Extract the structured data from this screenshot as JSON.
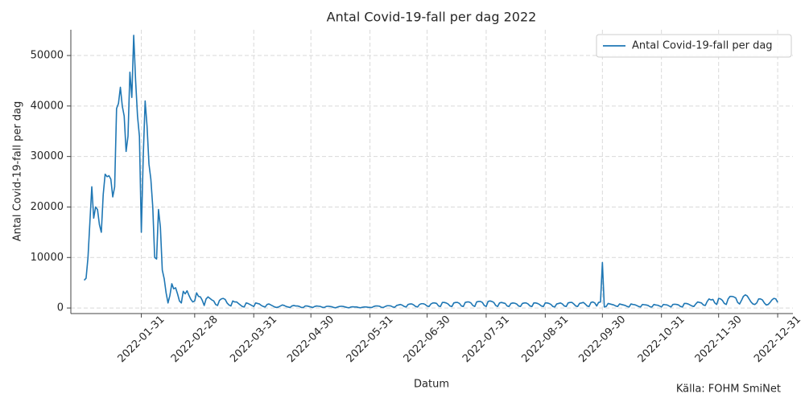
{
  "chart_data": {
    "type": "line",
    "title": "Antal Covid-19-fall per dag 2022",
    "xlabel": "Datum",
    "ylabel": "Antal Covid-19-fall per dag",
    "annotation": "Källa: FOHM SmiNet",
    "legend": "upper right",
    "grid": true,
    "xlim": [
      "2021-12-25",
      "2023-01-08"
    ],
    "ylim": [
      -1100,
      55100
    ],
    "xticks": [
      "2022-01-31",
      "2022-02-28",
      "2022-03-31",
      "2022-04-30",
      "2022-05-31",
      "2022-06-30",
      "2022-07-31",
      "2022-08-31",
      "2022-09-30",
      "2022-10-31",
      "2022-11-30",
      "2022-12-31"
    ],
    "yticks": [
      0,
      10000,
      20000,
      30000,
      40000,
      50000
    ],
    "x": [
      "2022-01-01",
      "2022-01-02",
      "2022-01-03",
      "2022-01-04",
      "2022-01-05",
      "2022-01-06",
      "2022-01-07",
      "2022-01-08",
      "2022-01-09",
      "2022-01-10",
      "2022-01-11",
      "2022-01-12",
      "2022-01-13",
      "2022-01-14",
      "2022-01-15",
      "2022-01-16",
      "2022-01-17",
      "2022-01-18",
      "2022-01-19",
      "2022-01-20",
      "2022-01-21",
      "2022-01-22",
      "2022-01-23",
      "2022-01-24",
      "2022-01-25",
      "2022-01-26",
      "2022-01-27",
      "2022-01-28",
      "2022-01-29",
      "2022-01-30",
      "2022-01-31",
      "2022-02-01",
      "2022-02-02",
      "2022-02-03",
      "2022-02-04",
      "2022-02-05",
      "2022-02-06",
      "2022-02-07",
      "2022-02-08",
      "2022-02-09",
      "2022-02-10",
      "2022-02-11",
      "2022-02-12",
      "2022-02-13",
      "2022-02-14",
      "2022-02-15",
      "2022-02-16",
      "2022-02-17",
      "2022-02-18",
      "2022-02-19",
      "2022-02-20",
      "2022-02-21",
      "2022-02-22",
      "2022-02-23",
      "2022-02-24",
      "2022-02-25",
      "2022-02-26",
      "2022-02-27",
      "2022-02-28",
      "2022-03-01",
      "2022-03-02",
      "2022-03-03",
      "2022-03-04",
      "2022-03-05",
      "2022-03-06",
      "2022-03-07",
      "2022-03-08",
      "2022-03-09",
      "2022-03-10",
      "2022-03-11",
      "2022-03-12",
      "2022-03-13",
      "2022-03-14",
      "2022-03-15",
      "2022-03-16",
      "2022-03-17",
      "2022-03-18",
      "2022-03-19",
      "2022-03-20",
      "2022-03-21",
      "2022-03-22",
      "2022-03-23",
      "2022-03-24",
      "2022-03-25",
      "2022-03-26",
      "2022-03-27",
      "2022-03-28",
      "2022-03-29",
      "2022-03-30",
      "2022-03-31",
      "2022-04-01",
      "2022-04-02",
      "2022-04-03",
      "2022-04-04",
      "2022-04-05",
      "2022-04-06",
      "2022-04-07",
      "2022-04-08",
      "2022-04-09",
      "2022-04-10",
      "2022-04-11",
      "2022-04-12",
      "2022-04-13",
      "2022-04-14",
      "2022-04-15",
      "2022-04-16",
      "2022-04-17",
      "2022-04-18",
      "2022-04-19",
      "2022-04-20",
      "2022-04-21",
      "2022-04-22",
      "2022-04-23",
      "2022-04-24",
      "2022-04-25",
      "2022-04-26",
      "2022-04-27",
      "2022-04-28",
      "2022-04-29",
      "2022-04-30",
      "2022-05-01",
      "2022-05-02",
      "2022-05-03",
      "2022-05-04",
      "2022-05-05",
      "2022-05-06",
      "2022-05-07",
      "2022-05-08",
      "2022-05-09",
      "2022-05-10",
      "2022-05-11",
      "2022-05-12",
      "2022-05-13",
      "2022-05-14",
      "2022-05-15",
      "2022-05-16",
      "2022-05-17",
      "2022-05-18",
      "2022-05-19",
      "2022-05-20",
      "2022-05-21",
      "2022-05-22",
      "2022-05-23",
      "2022-05-24",
      "2022-05-25",
      "2022-05-26",
      "2022-05-27",
      "2022-05-28",
      "2022-05-29",
      "2022-05-30",
      "2022-05-31",
      "2022-06-01",
      "2022-06-02",
      "2022-06-03",
      "2022-06-04",
      "2022-06-05",
      "2022-06-06",
      "2022-06-07",
      "2022-06-08",
      "2022-06-09",
      "2022-06-10",
      "2022-06-11",
      "2022-06-12",
      "2022-06-13",
      "2022-06-14",
      "2022-06-15",
      "2022-06-16",
      "2022-06-17",
      "2022-06-18",
      "2022-06-19",
      "2022-06-20",
      "2022-06-21",
      "2022-06-22",
      "2022-06-23",
      "2022-06-24",
      "2022-06-25",
      "2022-06-26",
      "2022-06-27",
      "2022-06-28",
      "2022-06-29",
      "2022-06-30",
      "2022-07-01",
      "2022-07-02",
      "2022-07-03",
      "2022-07-04",
      "2022-07-05",
      "2022-07-06",
      "2022-07-07",
      "2022-07-08",
      "2022-07-09",
      "2022-07-10",
      "2022-07-11",
      "2022-07-12",
      "2022-07-13",
      "2022-07-14",
      "2022-07-15",
      "2022-07-16",
      "2022-07-17",
      "2022-07-18",
      "2022-07-19",
      "2022-07-20",
      "2022-07-21",
      "2022-07-22",
      "2022-07-23",
      "2022-07-24",
      "2022-07-25",
      "2022-07-26",
      "2022-07-27",
      "2022-07-28",
      "2022-07-29",
      "2022-07-30",
      "2022-07-31",
      "2022-08-01",
      "2022-08-02",
      "2022-08-03",
      "2022-08-04",
      "2022-08-05",
      "2022-08-06",
      "2022-08-07",
      "2022-08-08",
      "2022-08-09",
      "2022-08-10",
      "2022-08-11",
      "2022-08-12",
      "2022-08-13",
      "2022-08-14",
      "2022-08-15",
      "2022-08-16",
      "2022-08-17",
      "2022-08-18",
      "2022-08-19",
      "2022-08-20",
      "2022-08-21",
      "2022-08-22",
      "2022-08-23",
      "2022-08-24",
      "2022-08-25",
      "2022-08-26",
      "2022-08-27",
      "2022-08-28",
      "2022-08-29",
      "2022-08-30",
      "2022-08-31",
      "2022-09-01",
      "2022-09-02",
      "2022-09-03",
      "2022-09-04",
      "2022-09-05",
      "2022-09-06",
      "2022-09-07",
      "2022-09-08",
      "2022-09-09",
      "2022-09-10",
      "2022-09-11",
      "2022-09-12",
      "2022-09-13",
      "2022-09-14",
      "2022-09-15",
      "2022-09-16",
      "2022-09-17",
      "2022-09-18",
      "2022-09-19",
      "2022-09-20",
      "2022-09-21",
      "2022-09-22",
      "2022-09-23",
      "2022-09-24",
      "2022-09-25",
      "2022-09-26",
      "2022-09-27",
      "2022-09-28",
      "2022-09-29",
      "2022-09-30",
      "2022-10-01",
      "2022-10-02",
      "2022-10-03",
      "2022-10-04",
      "2022-10-05",
      "2022-10-06",
      "2022-10-07",
      "2022-10-08",
      "2022-10-09",
      "2022-10-10",
      "2022-10-11",
      "2022-10-12",
      "2022-10-13",
      "2022-10-14",
      "2022-10-15",
      "2022-10-16",
      "2022-10-17",
      "2022-10-18",
      "2022-10-19",
      "2022-10-20",
      "2022-10-21",
      "2022-10-22",
      "2022-10-23",
      "2022-10-24",
      "2022-10-25",
      "2022-10-26",
      "2022-10-27",
      "2022-10-28",
      "2022-10-29",
      "2022-10-30",
      "2022-10-31",
      "2022-11-01",
      "2022-11-02",
      "2022-11-03",
      "2022-11-04",
      "2022-11-05",
      "2022-11-06",
      "2022-11-07",
      "2022-11-08",
      "2022-11-09",
      "2022-11-10",
      "2022-11-11",
      "2022-11-12",
      "2022-11-13",
      "2022-11-14",
      "2022-11-15",
      "2022-11-16",
      "2022-11-17",
      "2022-11-18",
      "2022-11-19",
      "2022-11-20",
      "2022-11-21",
      "2022-11-22",
      "2022-11-23",
      "2022-11-24",
      "2022-11-25",
      "2022-11-26",
      "2022-11-27",
      "2022-11-28",
      "2022-11-29",
      "2022-11-30",
      "2022-12-01",
      "2022-12-02",
      "2022-12-03",
      "2022-12-04",
      "2022-12-05",
      "2022-12-06",
      "2022-12-07",
      "2022-12-08",
      "2022-12-09",
      "2022-12-10",
      "2022-12-11",
      "2022-12-12",
      "2022-12-13",
      "2022-12-14",
      "2022-12-15",
      "2022-12-16",
      "2022-12-17",
      "2022-12-18",
      "2022-12-19",
      "2022-12-20",
      "2022-12-21",
      "2022-12-22",
      "2022-12-23",
      "2022-12-24",
      "2022-12-25",
      "2022-12-26",
      "2022-12-27",
      "2022-12-28",
      "2022-12-29",
      "2022-12-30",
      "2022-12-31"
    ],
    "series": [
      {
        "name": "Antal Covid-19-fall per dag",
        "color": "#1f77b4",
        "values": [
          5500,
          5900,
          10000,
          17000,
          24000,
          17800,
          20000,
          19500,
          16500,
          15000,
          22500,
          26500,
          26000,
          26200,
          25500,
          22000,
          24000,
          39500,
          40500,
          43700,
          40000,
          38000,
          31000,
          34000,
          46700,
          41700,
          54000,
          45000,
          38000,
          34000,
          15000,
          30000,
          41000,
          36000,
          28500,
          25500,
          20000,
          10000,
          9700,
          19500,
          16000,
          7500,
          5800,
          3000,
          1000,
          2500,
          4800,
          3800,
          4000,
          2800,
          1400,
          1000,
          3300,
          2800,
          3400,
          2500,
          1700,
          1200,
          1400,
          3000,
          2300,
          2200,
          1500,
          500,
          1800,
          2200,
          1900,
          1600,
          1400,
          700,
          500,
          1500,
          1800,
          1900,
          1700,
          1000,
          600,
          400,
          1400,
          1200,
          1200,
          900,
          600,
          300,
          200,
          1000,
          900,
          700,
          500,
          300,
          1000,
          900,
          800,
          500,
          300,
          200,
          700,
          800,
          600,
          400,
          200,
          100,
          200,
          400,
          600,
          500,
          300,
          200,
          100,
          400,
          500,
          400,
          400,
          300,
          100,
          100,
          400,
          400,
          300,
          200,
          100,
          300,
          400,
          350,
          300,
          150,
          100,
          300,
          350,
          300,
          250,
          100,
          50,
          200,
          300,
          350,
          300,
          200,
          100,
          50,
          200,
          250,
          200,
          200,
          100,
          50,
          150,
          200,
          200,
          150,
          100,
          100,
          300,
          400,
          400,
          350,
          150,
          100,
          300,
          450,
          450,
          400,
          200,
          150,
          500,
          600,
          700,
          550,
          300,
          200,
          700,
          800,
          800,
          600,
          300,
          200,
          700,
          850,
          850,
          700,
          400,
          300,
          800,
          1000,
          1000,
          900,
          400,
          300,
          1100,
          1100,
          1000,
          800,
          400,
          300,
          1000,
          1100,
          1100,
          900,
          400,
          300,
          1100,
          1200,
          1200,
          1000,
          500,
          300,
          1200,
          1300,
          1300,
          1100,
          500,
          300,
          1300,
          1400,
          1300,
          1100,
          500,
          300,
          1000,
          1100,
          1000,
          900,
          400,
          300,
          900,
          1000,
          950,
          800,
          400,
          300,
          900,
          1000,
          1000,
          800,
          400,
          300,
          1000,
          1000,
          900,
          700,
          400,
          300,
          1000,
          1000,
          900,
          700,
          300,
          200,
          800,
          900,
          1000,
          800,
          400,
          300,
          1000,
          1100,
          1100,
          800,
          400,
          300,
          900,
          1000,
          1100,
          800,
          400,
          300,
          1100,
          1200,
          1000,
          400,
          1100,
          1200,
          9000,
          200,
          300,
          900,
          800,
          700,
          600,
          400,
          300,
          800,
          700,
          600,
          500,
          300,
          200,
          800,
          700,
          650,
          500,
          300,
          200,
          700,
          650,
          600,
          500,
          250,
          200,
          700,
          600,
          550,
          400,
          200,
          700,
          650,
          600,
          400,
          200,
          700,
          750,
          700,
          600,
          300,
          200,
          900,
          900,
          800,
          600,
          400,
          300,
          800,
          1200,
          1100,
          1000,
          600,
          500,
          1300,
          1800,
          1600,
          1700,
          1000,
          700,
          1900,
          1800,
          1500,
          900,
          700,
          1800,
          2300,
          2300,
          2200,
          2000,
          1100,
          800,
          1500,
          2300,
          2600,
          2400,
          1800,
          1200,
          800,
          700,
          1000,
          1800,
          1800,
          1600,
          1000,
          600,
          700,
          1100,
          1600,
          1900,
          1800,
          1100
        ]
      }
    ]
  }
}
